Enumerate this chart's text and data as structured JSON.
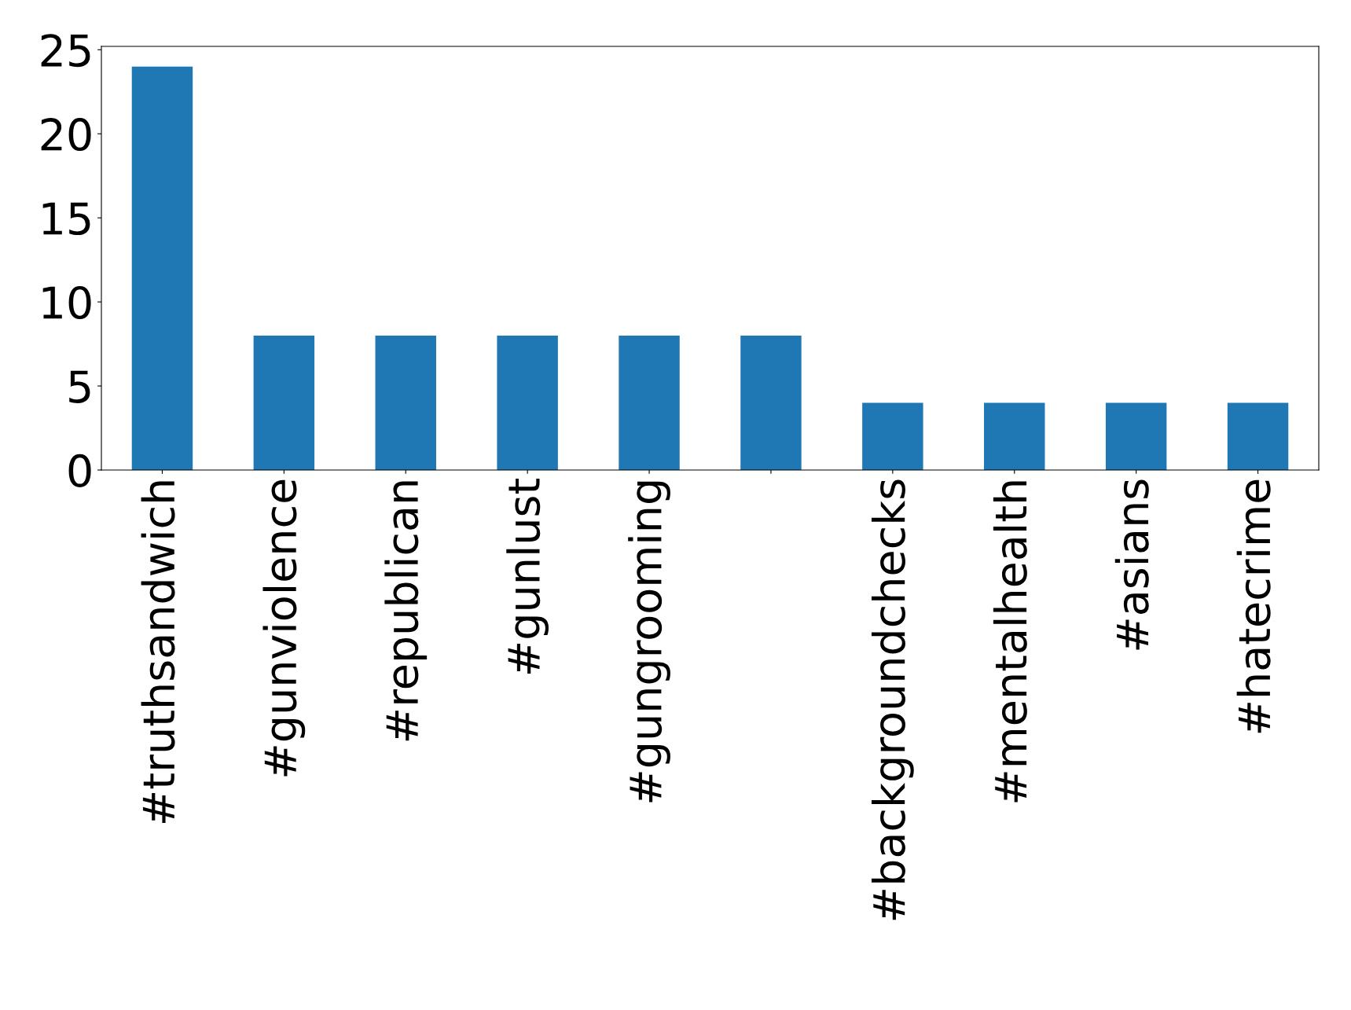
{
  "chart_data": {
    "type": "bar",
    "categories": [
      "#truthsandwich",
      "#gunviolence",
      "#republican",
      "#gunlust",
      "#gungrooming",
      null,
      "#backgroundchecks",
      "#mentalhealth",
      "#asians",
      "#hatecrime"
    ],
    "values": [
      24,
      8,
      8,
      8,
      8,
      8,
      4,
      4,
      4,
      4
    ],
    "color": "#1f77b4",
    "ylim": [
      0,
      25.2
    ],
    "yticks": [
      0,
      5,
      10,
      15,
      20,
      25
    ],
    "grid": false,
    "legend": false
  }
}
